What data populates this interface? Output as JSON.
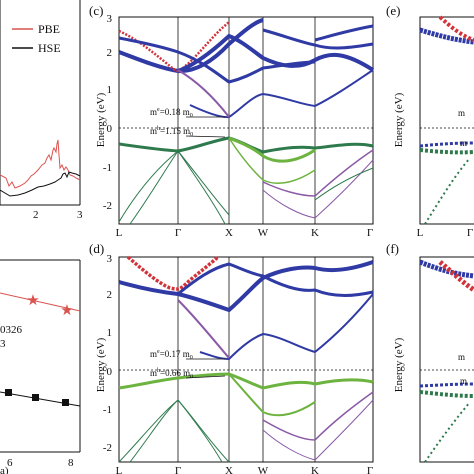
{
  "panels": {
    "left_top": {
      "legend": [
        "PBE",
        "HSE"
      ],
      "x_ticks": [
        "2",
        "3"
      ]
    },
    "left_bottom": {
      "annotation_1": "0326",
      "annotation_2": "3",
      "x_ticks": [
        "6",
        "8"
      ],
      "x_label_fragment": "a)"
    },
    "c": {
      "label": "(c)",
      "ylabel": "Energy (eV)",
      "y_ticks": [
        "3",
        "2",
        "1",
        "0",
        "-1",
        "-2"
      ],
      "kpoints": [
        "L",
        "Γ",
        "X",
        "W",
        "K",
        "Γ"
      ],
      "me_label": "m",
      "me_value": "=0.18 m",
      "mh_value": "=1.15 m",
      "sub0": "0"
    },
    "d": {
      "label": "(d)",
      "ylabel": "Energy (eV)",
      "y_ticks": [
        "3",
        "2",
        "1",
        "0",
        "-1",
        "-2"
      ],
      "kpoints": [
        "L",
        "Γ",
        "X",
        "W",
        "K",
        "Γ"
      ],
      "me_value": "=0.17 m",
      "mh_value": "=0.66 m",
      "sub0": "0"
    },
    "e": {
      "label": "(e)",
      "ylabel": "Energy (eV)",
      "kpoints": [
        "L",
        "Γ"
      ]
    },
    "f": {
      "label": "(f)",
      "ylabel": "Energy (eV)",
      "kpoints": [
        "L",
        "Γ"
      ]
    }
  },
  "colors": {
    "pbe": "#d9534f",
    "hse": "#111111",
    "band_blue": "#2f3aa5",
    "band_red": "#d2333a",
    "band_green": "#6db33f",
    "band_darkgreen": "#2e7a4d",
    "band_purple": "#8a5aa6"
  }
}
